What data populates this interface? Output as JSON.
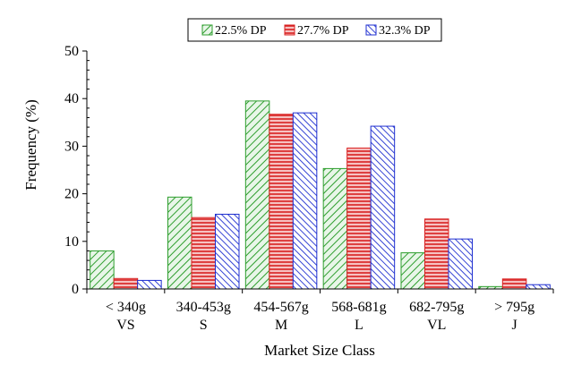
{
  "chart_data": {
    "type": "bar",
    "ylabel": "Frequency (%)",
    "xlabel": "Market Size Class",
    "ylim": [
      0,
      50
    ],
    "yticks": [
      0,
      10,
      20,
      30,
      40,
      50
    ],
    "grid": false,
    "legend_position": "top",
    "categories": [
      {
        "line1": "< 340g",
        "line2": "VS"
      },
      {
        "line1": "340-453g",
        "line2": "S"
      },
      {
        "line1": "454-567g",
        "line2": "M"
      },
      {
        "line1": "568-681g",
        "line2": "L"
      },
      {
        "line1": "682-795g",
        "line2": "VL"
      },
      {
        "line1": "> 795g",
        "line2": "J"
      }
    ],
    "series": [
      {
        "name": "22.5% DP",
        "color": "#2e9e2e",
        "fill": "#e8f6e8",
        "pattern": "diagonal-up",
        "values": [
          8.0,
          19.3,
          39.5,
          25.3,
          7.6,
          0.5
        ]
      },
      {
        "name": "27.7% DP",
        "color": "#d92020",
        "fill": "#f6c2c2",
        "pattern": "horizontal",
        "values": [
          2.2,
          15.0,
          36.7,
          29.6,
          14.7,
          2.1
        ]
      },
      {
        "name": "32.3% DP",
        "color": "#1f2fd0",
        "fill": "#ffffff",
        "pattern": "diagonal-down",
        "values": [
          1.8,
          15.7,
          37.0,
          34.2,
          10.5,
          0.9
        ]
      }
    ]
  }
}
